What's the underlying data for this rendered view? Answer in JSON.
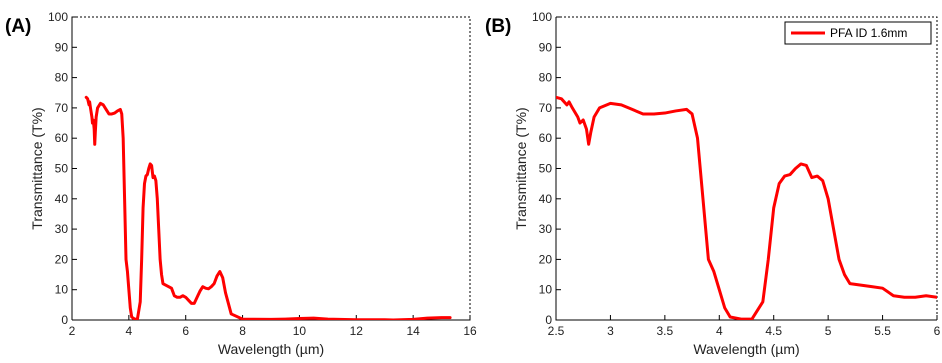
{
  "figure": {
    "panel_a_label": "(A)",
    "panel_b_label": "(B)"
  },
  "chart_data": [
    {
      "type": "line",
      "panel": "(A)",
      "xlabel": "Wavelength (µm)",
      "ylabel": "Transmittance (T%)",
      "xlim": [
        2,
        16
      ],
      "ylim": [
        0,
        100
      ],
      "xticks": [
        2,
        4,
        6,
        8,
        10,
        12,
        14,
        16
      ],
      "yticks": [
        0,
        10,
        20,
        30,
        40,
        50,
        60,
        70,
        80,
        90,
        100
      ],
      "grid": false,
      "color": "#ff0000",
      "series": [
        {
          "x": [
            2.5,
            2.55,
            2.6,
            2.62,
            2.65,
            2.7,
            2.72,
            2.75,
            2.78,
            2.8,
            2.82,
            2.85,
            2.9,
            3.0,
            3.1,
            3.2,
            3.3,
            3.4,
            3.5,
            3.6,
            3.7,
            3.75,
            3.8,
            3.85,
            3.9,
            3.95,
            4.0,
            4.05,
            4.1,
            4.2,
            4.3,
            4.4,
            4.45,
            4.5,
            4.55,
            4.6,
            4.65,
            4.7,
            4.75,
            4.8,
            4.85,
            4.9,
            4.95,
            5.0,
            5.05,
            5.1,
            5.15,
            5.2,
            5.3,
            5.4,
            5.5,
            5.6,
            5.7,
            5.8,
            5.9,
            6.0,
            6.1,
            6.2,
            6.3,
            6.4,
            6.5,
            6.6,
            6.7,
            6.8,
            6.9,
            7.0,
            7.1,
            7.2,
            7.3,
            7.4,
            7.6,
            8.0,
            9.0,
            9.5,
            10.0,
            10.5,
            11.0,
            12.0,
            13.0,
            13.3,
            14.0,
            14.5,
            15.0,
            15.3
          ],
          "y": [
            73.5,
            73,
            71,
            72,
            70,
            67,
            65,
            66,
            63,
            58,
            62,
            67,
            70,
            71.5,
            71,
            69.5,
            68,
            68,
            68.3,
            69,
            69.5,
            68,
            60,
            40,
            20,
            16,
            10,
            4,
            1,
            0.3,
            0.3,
            6,
            20,
            37,
            45,
            47.5,
            48,
            50,
            51.5,
            51,
            47,
            47.5,
            46,
            40,
            30,
            20,
            15,
            12,
            11.5,
            11,
            10.5,
            8,
            7.5,
            7.5,
            8,
            7.5,
            6.5,
            5.5,
            5.5,
            7.5,
            9.5,
            11,
            10.5,
            10.3,
            11,
            12,
            14.5,
            16,
            14,
            9,
            2,
            0.3,
            0.2,
            0.3,
            0.5,
            0.6,
            0.3,
            0.1,
            0.1,
            0.0,
            0.2,
            0.6,
            0.8,
            0.8
          ]
        }
      ]
    },
    {
      "type": "line",
      "panel": "(B)",
      "xlabel": "Wavelength (µm)",
      "ylabel": "Transmittance (T%)",
      "xlim": [
        2.5,
        6
      ],
      "ylim": [
        0,
        100
      ],
      "xticks": [
        2.5,
        3,
        3.5,
        4,
        4.5,
        5,
        5.5,
        6
      ],
      "yticks": [
        0,
        10,
        20,
        30,
        40,
        50,
        60,
        70,
        80,
        90,
        100
      ],
      "grid": false,
      "legend_position": "top-right",
      "color": "#ff0000",
      "series": [
        {
          "name": "PFA ID 1.6mm",
          "x": [
            2.5,
            2.55,
            2.6,
            2.62,
            2.65,
            2.7,
            2.72,
            2.75,
            2.78,
            2.8,
            2.82,
            2.85,
            2.9,
            3.0,
            3.1,
            3.2,
            3.3,
            3.4,
            3.5,
            3.6,
            3.7,
            3.75,
            3.8,
            3.85,
            3.9,
            3.95,
            4.0,
            4.05,
            4.1,
            4.2,
            4.3,
            4.4,
            4.45,
            4.5,
            4.55,
            4.6,
            4.65,
            4.7,
            4.75,
            4.8,
            4.85,
            4.9,
            4.95,
            5.0,
            5.05,
            5.1,
            5.15,
            5.2,
            5.3,
            5.4,
            5.5,
            5.6,
            5.7,
            5.8,
            5.9,
            6.0
          ],
          "y": [
            73.5,
            73,
            71,
            72,
            70,
            67,
            65,
            66,
            63,
            58,
            62,
            67,
            70,
            71.5,
            71,
            69.5,
            68,
            68,
            68.3,
            69,
            69.5,
            68,
            60,
            40,
            20,
            16,
            10,
            4,
            1,
            0.3,
            0.3,
            6,
            20,
            37,
            45,
            47.5,
            48,
            50,
            51.5,
            51,
            47,
            47.5,
            46,
            40,
            30,
            20,
            15,
            12,
            11.5,
            11,
            10.5,
            8,
            7.5,
            7.5,
            8,
            7.5
          ]
        }
      ]
    }
  ]
}
